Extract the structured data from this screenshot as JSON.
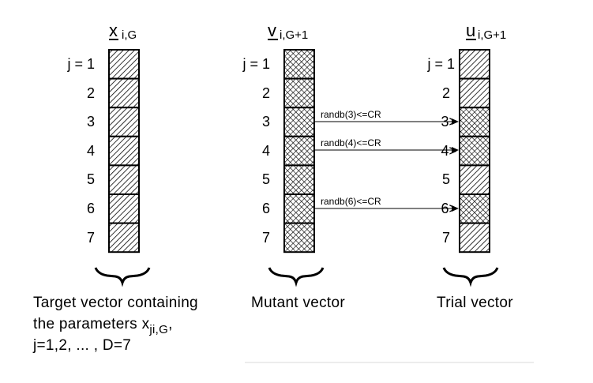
{
  "vectors": [
    {
      "symbol": "x",
      "subscript": "i,G",
      "fill": "hatch",
      "indices": [
        "j = 1",
        "2",
        "3",
        "4",
        "5",
        "6",
        "7"
      ],
      "caption": [
        "Target vector containing",
        "the parameters ",
        "j=1,2, ... , D=7"
      ],
      "param_symbol": "x",
      "param_subscript": "ji,G",
      "param_suffix": ","
    },
    {
      "symbol": "v",
      "subscript": "i,G+1",
      "fill": "crosshatch",
      "indices": [
        "j = 1",
        "2",
        "3",
        "4",
        "5",
        "6",
        "7"
      ],
      "caption": [
        "Mutant vector"
      ]
    },
    {
      "symbol": "u",
      "subscript": "i,G+1",
      "fill": "mixed",
      "cell_fills": [
        "hatch",
        "hatch",
        "crosshatch",
        "crosshatch",
        "hatch",
        "crosshatch",
        "hatch"
      ],
      "indices": [
        "j = 1",
        "2",
        "3>",
        "4>",
        "5",
        "6>",
        "7"
      ],
      "caption": [
        "Trial vector"
      ]
    }
  ],
  "crossover_arrows": [
    {
      "row": 3,
      "label": "randb(3)<=CR"
    },
    {
      "row": 4,
      "label": "randb(4)<=CR"
    },
    {
      "row": 6,
      "label": "randb(6)<=CR"
    }
  ]
}
